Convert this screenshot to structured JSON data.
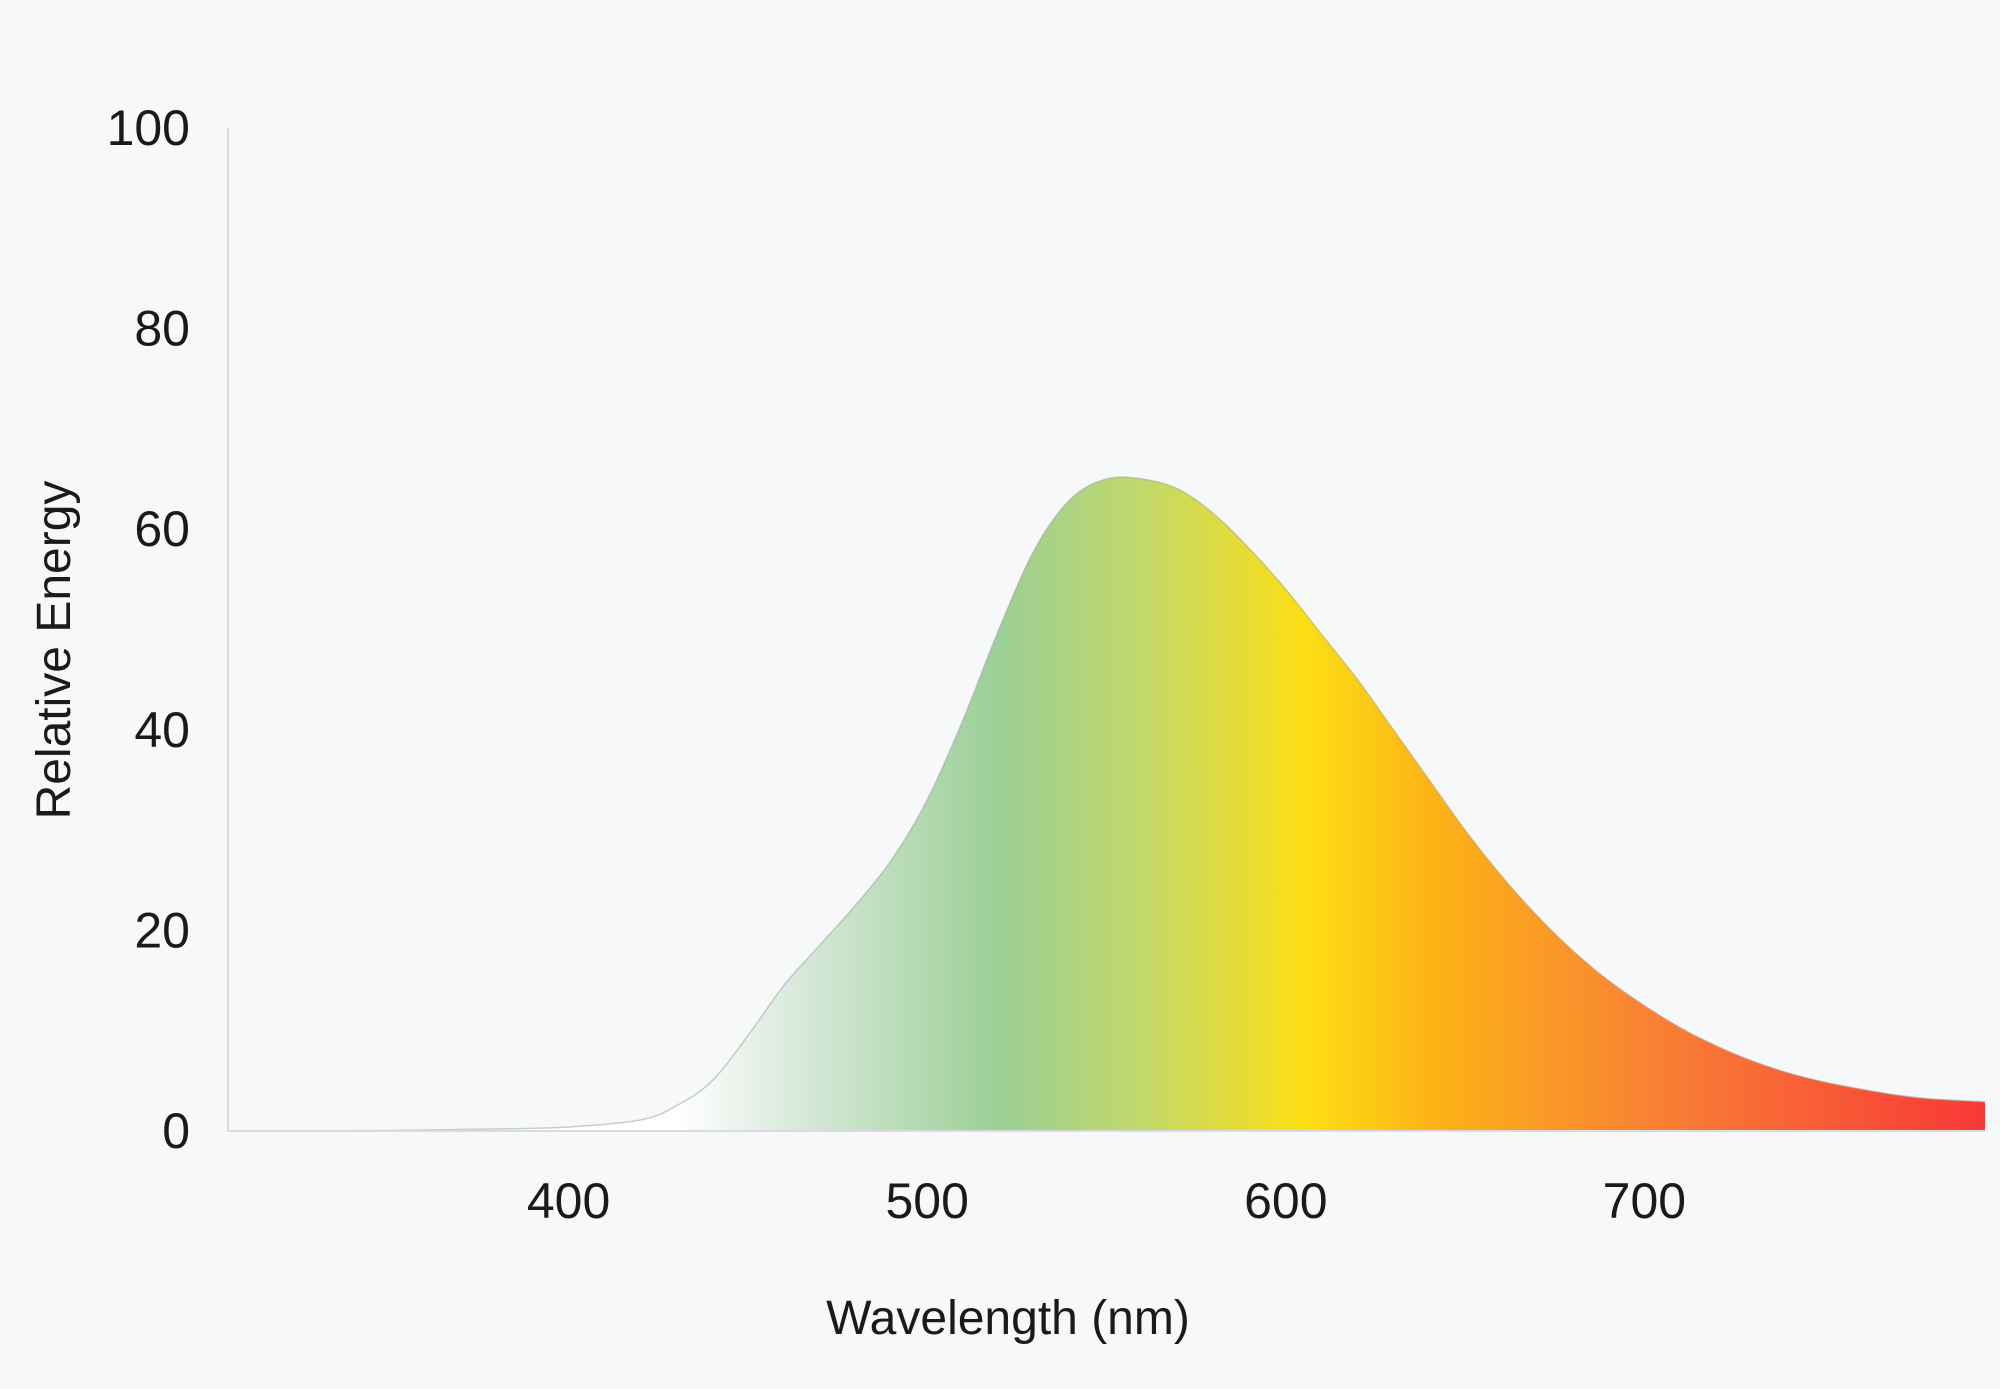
{
  "chart_data": {
    "type": "area",
    "title": "",
    "xlabel": "Wavelength (nm)",
    "ylabel": "Relative Energy",
    "xlim": [
      305,
      795
    ],
    "ylim": [
      0,
      100
    ],
    "x_ticks": [
      {
        "value": 400,
        "label": "400"
      },
      {
        "value": 500,
        "label": "500"
      },
      {
        "value": 600,
        "label": "600"
      },
      {
        "value": 700,
        "label": "700"
      }
    ],
    "y_ticks": [
      {
        "value": 0,
        "label": "0"
      },
      {
        "value": 20,
        "label": "20"
      },
      {
        "value": 40,
        "label": "40"
      },
      {
        "value": 60,
        "label": "60"
      },
      {
        "value": 80,
        "label": "80"
      },
      {
        "value": 100,
        "label": "100"
      }
    ],
    "grid": false,
    "legend": "none",
    "series": [
      {
        "x": [
          305,
          350,
          380,
          400,
          420,
          430,
          440,
          450,
          460,
          470,
          480,
          490,
          500,
          510,
          520,
          530,
          540,
          550,
          560,
          570,
          580,
          590,
          600,
          610,
          620,
          630,
          640,
          650,
          660,
          670,
          680,
          690,
          700,
          710,
          720,
          730,
          740,
          750,
          760,
          770,
          780,
          795
        ],
        "y": [
          0,
          0.05,
          0.2,
          0.4,
          1.1,
          2.5,
          5,
          9.5,
          14.5,
          18.5,
          22.5,
          27,
          33,
          41,
          50,
          58,
          63,
          65,
          65,
          64,
          61.5,
          58,
          54,
          49.5,
          45,
          40,
          35,
          30,
          25.5,
          21.5,
          18,
          15,
          12.5,
          10.3,
          8.5,
          7,
          5.8,
          4.9,
          4.2,
          3.6,
          3.2,
          2.9
        ]
      }
    ],
    "fill_gradient": [
      {
        "x": 430,
        "color": "#ffffff"
      },
      {
        "x": 460,
        "color": "#dcebdf"
      },
      {
        "x": 520,
        "color": "#9bcf95"
      },
      {
        "x": 560,
        "color": "#c2d86a"
      },
      {
        "x": 605,
        "color": "#fcdf14"
      },
      {
        "x": 640,
        "color": "#fcb416"
      },
      {
        "x": 700,
        "color": "#f98334"
      },
      {
        "x": 795,
        "color": "#f73838"
      }
    ],
    "axis_color": "#d9dbdf"
  }
}
